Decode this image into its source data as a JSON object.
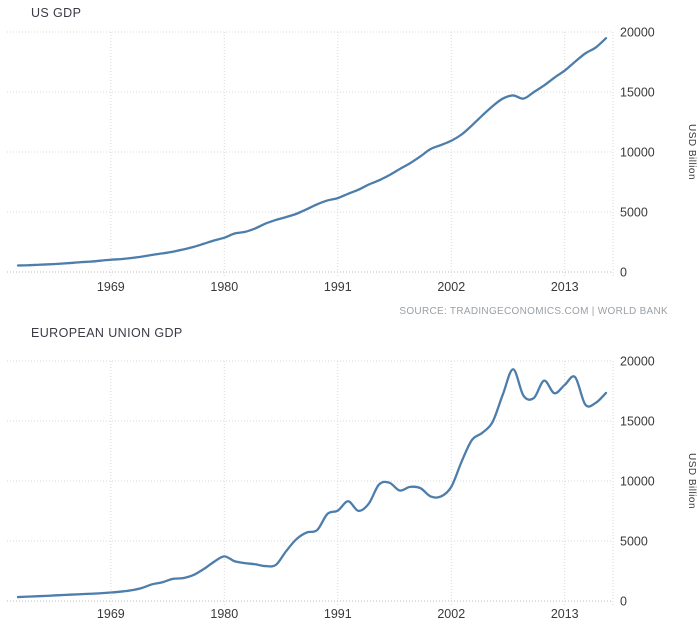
{
  "source_note": "SOURCE: TRADINGECONOMICS.COM | WORLD BANK",
  "colors": {
    "background": "#ffffff",
    "line": "#4d7dab",
    "grid": "#d9d9d9",
    "axis": "#b9b9b9",
    "tick_text": "#3a3a3a",
    "title_text": "#3b3b46",
    "source_text": "#9aa0a6"
  },
  "chart_data": [
    {
      "type": "line",
      "title": "US GDP",
      "ylabel": "USD Billion",
      "xlim": [
        1960,
        2017
      ],
      "ylim": [
        0,
        20000
      ],
      "x_ticks": [
        1969,
        1980,
        1991,
        2002,
        2013
      ],
      "y_ticks": [
        0,
        5000,
        10000,
        15000,
        20000
      ],
      "grid": "dotted",
      "legend": "none",
      "x": [
        1960,
        1961,
        1962,
        1963,
        1964,
        1965,
        1966,
        1967,
        1968,
        1969,
        1970,
        1971,
        1972,
        1973,
        1974,
        1975,
        1976,
        1977,
        1978,
        1979,
        1980,
        1981,
        1982,
        1983,
        1984,
        1985,
        1986,
        1987,
        1988,
        1989,
        1990,
        1991,
        1992,
        1993,
        1994,
        1995,
        1996,
        1997,
        1998,
        1999,
        2000,
        2001,
        2002,
        2003,
        2004,
        2005,
        2006,
        2007,
        2008,
        2009,
        2010,
        2011,
        2012,
        2013,
        2014,
        2015,
        2016,
        2017
      ],
      "values": [
        543,
        563,
        605,
        639,
        686,
        744,
        815,
        862,
        943,
        1020,
        1076,
        1168,
        1282,
        1429,
        1549,
        1689,
        1878,
        2086,
        2352,
        2627,
        2857,
        3207,
        3344,
        3634,
        4038,
        4339,
        4580,
        4855,
        5236,
        5642,
        5963,
        6158,
        6520,
        6859,
        7287,
        7640,
        8073,
        8578,
        9063,
        9631,
        10252,
        10582,
        10936,
        11458,
        12214,
        13037,
        13815,
        14452,
        14713,
        14449,
        14992,
        15543,
        16197,
        16785,
        17522,
        18219,
        18707,
        19485
      ]
    },
    {
      "type": "line",
      "title": "EUROPEAN UNION GDP",
      "ylabel": "USD Billion",
      "xlim": [
        1960,
        2017
      ],
      "ylim": [
        0,
        20000
      ],
      "x_ticks": [
        1969,
        1980,
        1991,
        2002,
        2013
      ],
      "y_ticks": [
        0,
        5000,
        10000,
        15000,
        20000
      ],
      "grid": "dotted",
      "legend": "none",
      "x": [
        1960,
        1961,
        1962,
        1963,
        1964,
        1965,
        1966,
        1967,
        1968,
        1969,
        1970,
        1971,
        1972,
        1973,
        1974,
        1975,
        1976,
        1977,
        1978,
        1979,
        1980,
        1981,
        1982,
        1983,
        1984,
        1985,
        1986,
        1987,
        1988,
        1989,
        1990,
        1991,
        1992,
        1993,
        1994,
        1995,
        1996,
        1997,
        1998,
        1999,
        2000,
        2001,
        2002,
        2003,
        2004,
        2005,
        2006,
        2007,
        2008,
        2009,
        2010,
        2011,
        2012,
        2013,
        2014,
        2015,
        2016,
        2017
      ],
      "values": [
        330,
        365,
        400,
        440,
        485,
        525,
        565,
        605,
        645,
        705,
        785,
        895,
        1085,
        1390,
        1560,
        1840,
        1910,
        2160,
        2660,
        3260,
        3720,
        3310,
        3160,
        3060,
        2910,
        3010,
        4160,
        5160,
        5710,
        5910,
        7260,
        7530,
        8310,
        7510,
        8110,
        9710,
        9860,
        9210,
        9510,
        9410,
        8710,
        8710,
        9510,
        11610,
        13410,
        14010,
        14910,
        17210,
        19310,
        17110,
        16910,
        18360,
        17310,
        18010,
        18660,
        16360,
        16510,
        17340
      ]
    }
  ]
}
